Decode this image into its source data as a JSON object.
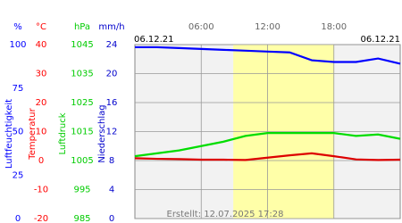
{
  "chart_data": {
    "type": "line",
    "xlim": [
      0,
      24
    ],
    "xticks": [
      {
        "value": 6,
        "label": "06:00"
      },
      {
        "value": 12,
        "label": "12:00"
      },
      {
        "value": 18,
        "label": "18:00"
      }
    ],
    "daylight": [
      8.9,
      18
    ],
    "date_left": "06.12.21",
    "date_right": "06.12.21",
    "footer": "Erstellt: 12.07.2025 17:28",
    "axes": [
      {
        "unit": "%",
        "title": "Luftfeuchtigkeit",
        "color": "#0000ff",
        "ylim": [
          0,
          100
        ],
        "yticks": [
          0,
          25,
          50,
          75,
          100
        ]
      },
      {
        "unit": "°C",
        "title": "Temperatur",
        "color": "#ff0000",
        "ylim": [
          -20,
          40
        ],
        "yticks": [
          -20,
          -10,
          0,
          10,
          20,
          30,
          40
        ]
      },
      {
        "unit": "hPa",
        "title": "Luftdruck",
        "color": "#00cc00",
        "ylim": [
          985,
          1045
        ],
        "yticks": [
          985,
          995,
          1005,
          1015,
          1025,
          1035,
          1045
        ]
      },
      {
        "unit": "mm/h",
        "title": "Niederschlag",
        "color": "#0000cc",
        "ylim": [
          0,
          24
        ],
        "yticks": [
          0,
          4,
          8,
          12,
          16,
          20,
          24
        ]
      }
    ],
    "x": [
      0,
      2,
      4,
      6,
      8,
      10,
      12,
      14,
      16,
      18,
      20,
      22,
      24
    ],
    "series": [
      {
        "axis": 0,
        "color": "#0000ff",
        "values": [
          98.5,
          98.5,
          98,
          97.5,
          97,
          96.5,
          96,
          95.5,
          91,
          90,
          90,
          92,
          89
        ]
      },
      {
        "axis": 1,
        "color": "#dd0000",
        "values": [
          0.8,
          0.6,
          0.5,
          0.3,
          0.3,
          0.2,
          1.0,
          1.8,
          2.5,
          1.5,
          0.4,
          0.2,
          0.3
        ]
      },
      {
        "axis": 2,
        "color": "#00dd00",
        "values": [
          1006.5,
          1007.5,
          1008.5,
          1010,
          1011.5,
          1013.5,
          1014.5,
          1014.5,
          1014.5,
          1014.5,
          1013.5,
          1014,
          1012.5
        ]
      }
    ]
  }
}
